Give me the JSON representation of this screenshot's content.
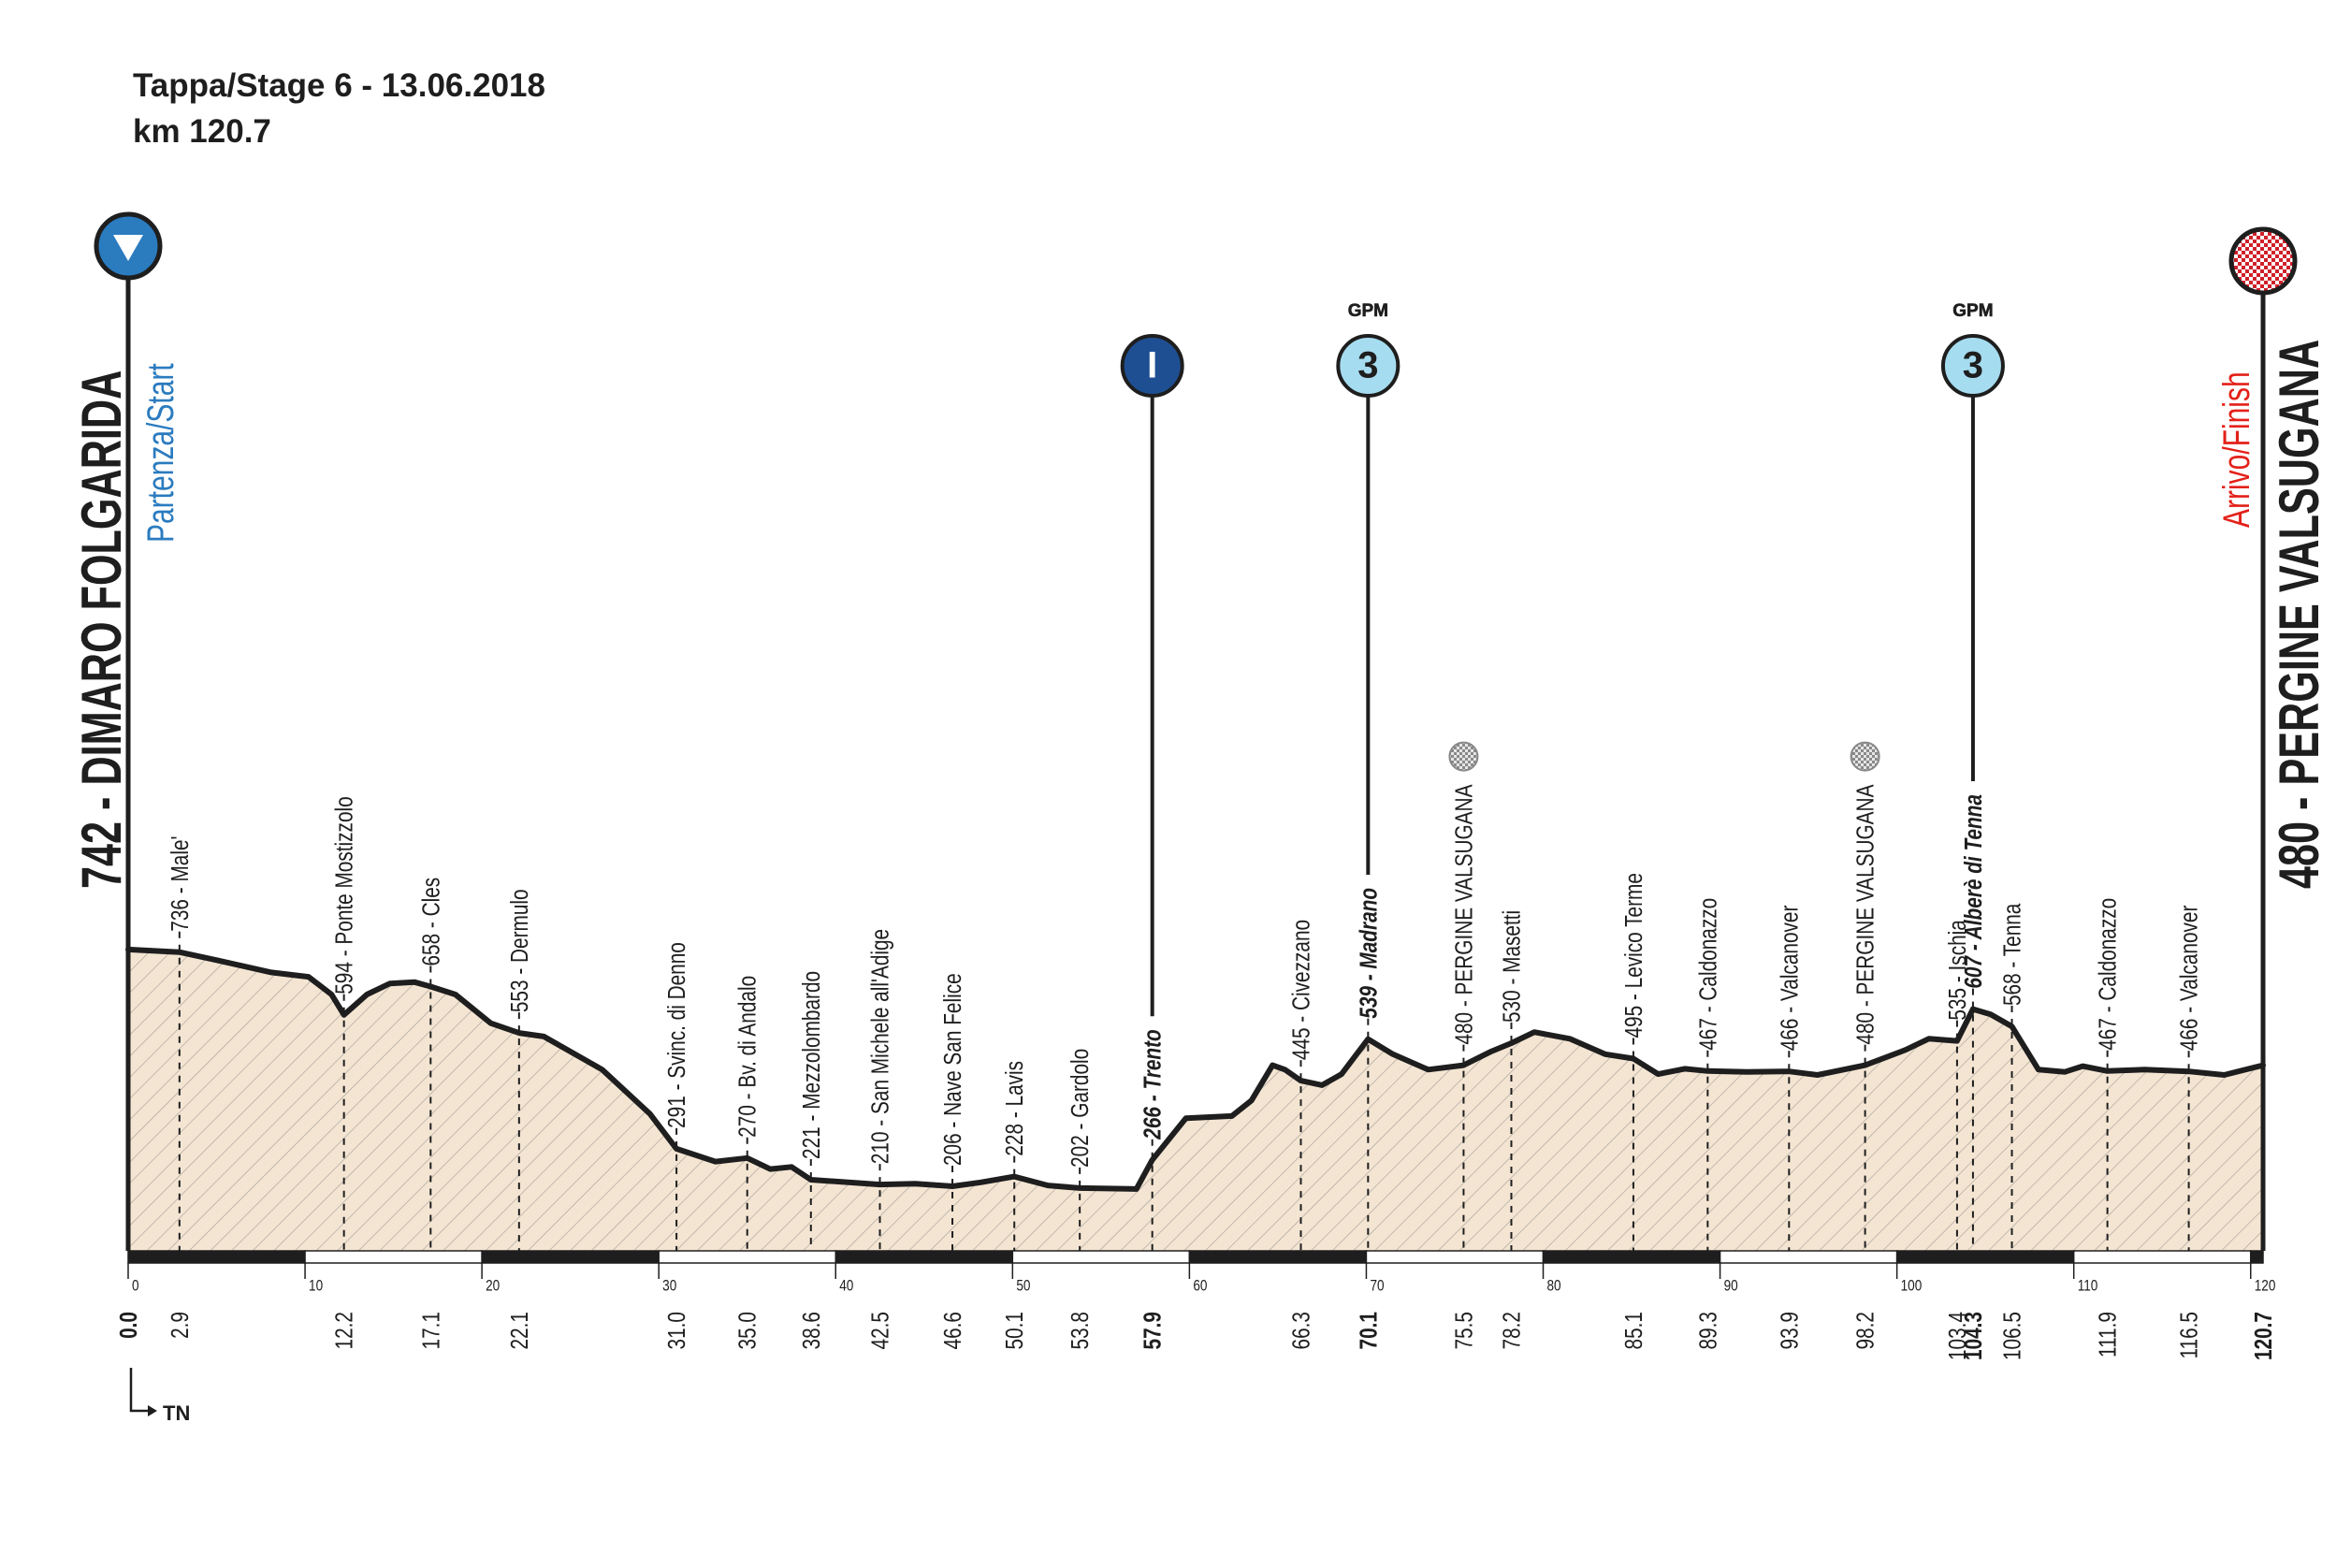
{
  "chart_data": {
    "type": "area",
    "title": "Tappa/Stage 6 - 13.06.2018",
    "subtitle": "km 120.7",
    "province": "TN",
    "xlim": [
      0,
      120.7
    ],
    "ylim": [
      60,
      1000
    ],
    "xticks": [
      0,
      10,
      20,
      30,
      40,
      50,
      60,
      70,
      80,
      90,
      100,
      110,
      120
    ],
    "color": "#f4e5d3",
    "line_color": "#1e1e1e",
    "start": {
      "km": {
        "value": 0,
        "label": "0.0"
      },
      "elevation": 742,
      "label": "742 - DIMARO FOLGARIDA",
      "caption": "Partenza/Start",
      "color": "#2b7bbf"
    },
    "finish": {
      "km": 120.7,
      "elevation": 480,
      "label": "480 - PERGINE VALSUGANA",
      "caption": "Arrivo/Finish",
      "color": "#e32119"
    },
    "waypoints": [
      {
        "km": 2.9,
        "elevation": 736,
        "label": "736 - Male'"
      },
      {
        "km": 12.2,
        "elevation": 594,
        "label": "594 - Ponte Mostizzolo"
      },
      {
        "km": 17.1,
        "elevation": 658,
        "label": "658 - Cles"
      },
      {
        "km": 22.1,
        "elevation": 553,
        "label": "553 - Dermulo"
      },
      {
        "km": {
          "value": 31,
          "label": "31.0"
        },
        "elevation": 291,
        "label": "291 - Svinc. di Denno"
      },
      {
        "km": {
          "value": 35,
          "label": "35.0"
        },
        "elevation": 270,
        "label": "270 - Bv. di Andalo"
      },
      {
        "km": 38.6,
        "elevation": 221,
        "label": "221 - Mezzolombardo"
      },
      {
        "km": 42.5,
        "elevation": 210,
        "label": "210 - San Michele all'Adige"
      },
      {
        "km": 46.6,
        "elevation": 206,
        "label": "206 - Nave San Felice"
      },
      {
        "km": 50.1,
        "elevation": 228,
        "label": "228 - Lavis"
      },
      {
        "km": 53.8,
        "elevation": 202,
        "label": "202 - Gardolo"
      },
      {
        "km": 57.9,
        "elevation": 266,
        "label": "266 - Trento",
        "bold": true,
        "marker": {
          "symbol": "I"
        }
      },
      {
        "km": 66.3,
        "elevation": 445,
        "label": "445 - Civezzano"
      },
      {
        "km": 70.1,
        "elevation": 539,
        "label": "539 - Madrano",
        "bold": true,
        "marker": {
          "symbol": "3",
          "category": "GPM"
        }
      },
      {
        "km": 75.5,
        "elevation": 480,
        "label": "480 - PERGINE VALSUGANA",
        "finish_line": true
      },
      {
        "km": 78.2,
        "elevation": 530,
        "label": "530 - Masetti"
      },
      {
        "km": 85.1,
        "elevation": 495,
        "label": "495 - Levico Terme"
      },
      {
        "km": 89.3,
        "elevation": 467,
        "label": "467 - Caldonazzo"
      },
      {
        "km": 93.9,
        "elevation": 466,
        "label": "466 - Valcanover"
      },
      {
        "km": 98.2,
        "elevation": 480,
        "label": "480 - PERGINE VALSUGANA",
        "finish_line": true
      },
      {
        "km": 103.4,
        "elevation": 535,
        "label": "535 - Ischia"
      },
      {
        "km": 104.3,
        "elevation": 607,
        "label": "607 - Alberè di Tenna",
        "bold": true,
        "marker": {
          "symbol": "3",
          "category": "GPM"
        }
      },
      {
        "km": 106.5,
        "elevation": 568,
        "label": "568 - Tenna"
      },
      {
        "km": 111.9,
        "elevation": 467,
        "label": "467 - Caldonazzo"
      },
      {
        "km": 116.5,
        "elevation": 466,
        "label": "466 - Valcanover"
      }
    ],
    "profile": {
      "x": [
        0,
        2.9,
        5.1,
        8.1,
        10.2,
        11.5,
        12.2,
        13.5,
        14.8,
        16.2,
        17.1,
        18.5,
        20.5,
        22.1,
        23.5,
        26.8,
        29.5,
        31.0,
        33.2,
        35.0,
        36.3,
        37.5,
        38.6,
        42.5,
        44.5,
        46.6,
        48.2,
        50.1,
        52.0,
        53.8,
        57.0,
        57.9,
        59.8,
        62.4,
        63.5,
        64.7,
        65.4,
        66.3,
        67.5,
        68.6,
        70.1,
        71.5,
        73.5,
        75.5,
        77.0,
        78.2,
        79.5,
        81.5,
        83.5,
        85.1,
        86.5,
        88.0,
        89.3,
        91.5,
        93.9,
        95.5,
        98.2,
        100.5,
        101.8,
        103.4,
        104.3,
        105.3,
        106.5,
        108.0,
        109.5,
        110.5,
        111.9,
        114.0,
        116.5,
        118.5,
        120.7
      ],
      "values": [
        742,
        736,
        717,
        690,
        680,
        640,
        594,
        640,
        665,
        668,
        658,
        640,
        575,
        553,
        545,
        470,
        370,
        291,
        262,
        270,
        245,
        250,
        221,
        210,
        212,
        206,
        215,
        228,
        208,
        202,
        200,
        266,
        360,
        365,
        400,
        480,
        470,
        445,
        435,
        460,
        539,
        505,
        470,
        480,
        510,
        530,
        555,
        540,
        505,
        495,
        460,
        472,
        467,
        465,
        466,
        458,
        480,
        515,
        540,
        535,
        607,
        595,
        568,
        470,
        465,
        478,
        467,
        470,
        466,
        458,
        480
      ]
    }
  }
}
